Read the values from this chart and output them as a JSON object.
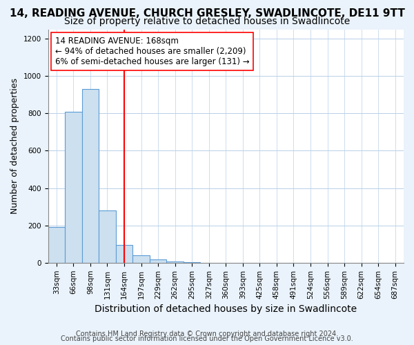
{
  "title": "14, READING AVENUE, CHURCH GRESLEY, SWADLINCOTE, DE11 9TT",
  "subtitle": "Size of property relative to detached houses in Swadlincote",
  "xlabel": "Distribution of detached houses by size in Swadlincote",
  "ylabel": "Number of detached properties",
  "bins": [
    "33sqm",
    "66sqm",
    "98sqm",
    "131sqm",
    "164sqm",
    "197sqm",
    "229sqm",
    "262sqm",
    "295sqm",
    "327sqm",
    "360sqm",
    "393sqm",
    "425sqm",
    "458sqm",
    "491sqm",
    "524sqm",
    "556sqm",
    "589sqm",
    "622sqm",
    "654sqm",
    "687sqm"
  ],
  "values": [
    190,
    810,
    930,
    280,
    95,
    40,
    18,
    8,
    3,
    0,
    0,
    0,
    0,
    0,
    0,
    0,
    0,
    0,
    0,
    0,
    0
  ],
  "bar_color": "#cce0f0",
  "bar_edge_color": "#5b9bd5",
  "property_line_x": 4,
  "property_line_color": "red",
  "annotation_text": "14 READING AVENUE: 168sqm\n← 94% of detached houses are smaller (2,209)\n6% of semi-detached houses are larger (131) →",
  "annotation_box_color": "white",
  "annotation_box_edge": "red",
  "ylim": [
    0,
    1250
  ],
  "yticks": [
    0,
    200,
    400,
    600,
    800,
    1000,
    1200
  ],
  "footer1": "Contains HM Land Registry data © Crown copyright and database right 2024.",
  "footer2": "Contains public sector information licensed under the Open Government Licence v3.0.",
  "background_color": "#eaf3fb",
  "plot_background": "white",
  "grid_color": "#b8d0e8",
  "title_fontsize": 11,
  "subtitle_fontsize": 10,
  "xlabel_fontsize": 10,
  "ylabel_fontsize": 9,
  "tick_fontsize": 7.5,
  "annotation_fontsize": 8.5,
  "footer_fontsize": 7
}
